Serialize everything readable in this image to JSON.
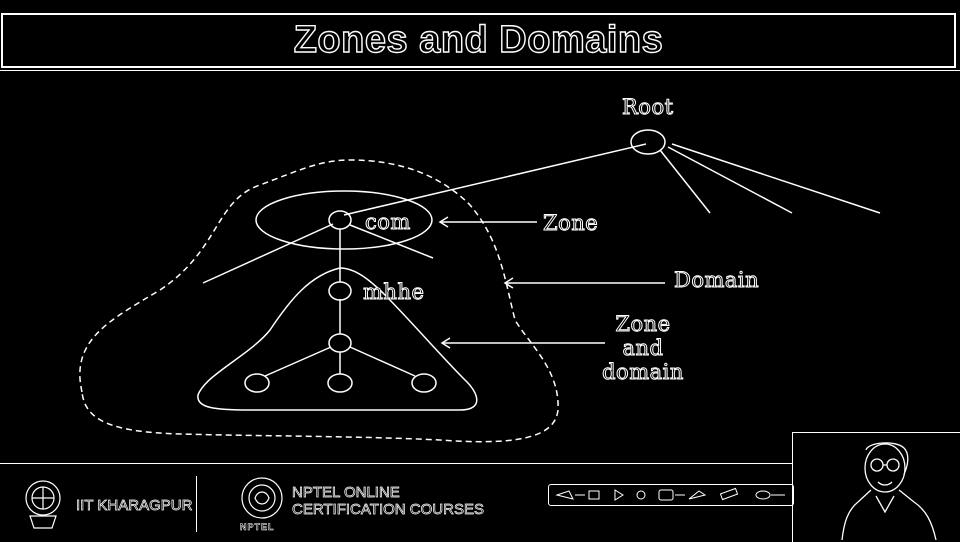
{
  "slide": {
    "title": "Zones and Domains"
  },
  "diagram": {
    "nodes": {
      "root": "Root",
      "com": "com",
      "mhhe": "mhhe"
    },
    "annotations": {
      "zone": "Zone",
      "domain": "Domain",
      "zone_and_domain_line1": "Zone",
      "zone_and_domain_line2": "and",
      "zone_and_domain_line3": "domain"
    }
  },
  "footer": {
    "institute": "IIT KHARAGPUR",
    "nptel_line1": "NPTEL ONLINE",
    "nptel_line2": "CERTIFICATION COURSES",
    "nptel_mark": "NPTEL"
  },
  "colors": {
    "background": "#000000",
    "stroke": "#ffffff"
  }
}
